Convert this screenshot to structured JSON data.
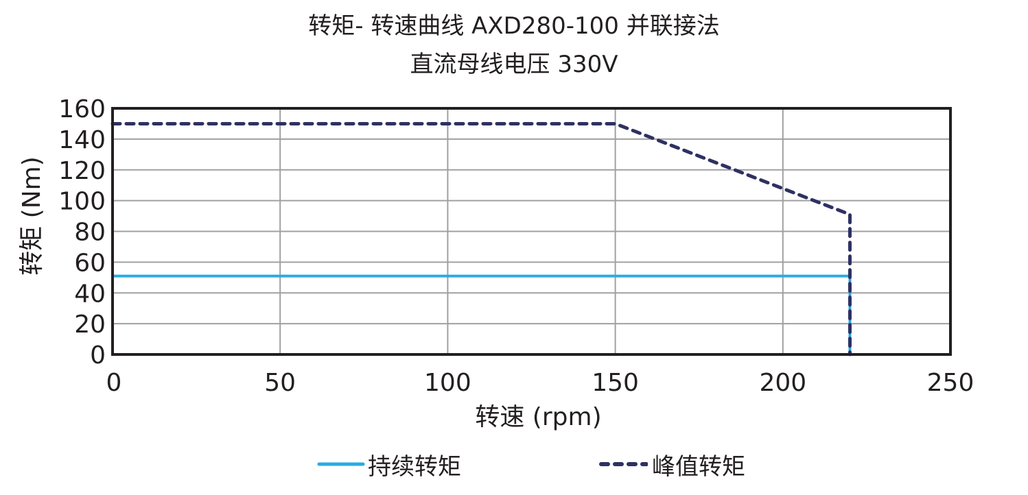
{
  "chart_data": {
    "type": "line",
    "title": "转矩- 转速曲线 AXD280-100 并联接法",
    "subtitle": "直流母线电压 330V",
    "xlabel": "转速 (rpm)",
    "ylabel": "转矩 (Nm)",
    "xlim": [
      0,
      250
    ],
    "ylim": [
      0,
      160
    ],
    "xticks": [
      0,
      50,
      100,
      150,
      200,
      250
    ],
    "yticks": [
      0,
      20,
      40,
      60,
      80,
      100,
      120,
      140,
      160
    ],
    "grid": true,
    "legend_position": "bottom",
    "series": [
      {
        "name": "持续转矩",
        "style": "solid",
        "color": "#29abe2",
        "points": [
          [
            0,
            51
          ],
          [
            220,
            51
          ],
          [
            220,
            0
          ]
        ]
      },
      {
        "name": "峰值转矩",
        "style": "dashed",
        "color": "#2e3162",
        "points": [
          [
            0,
            150
          ],
          [
            150,
            150
          ],
          [
            220,
            91
          ],
          [
            220,
            0
          ]
        ]
      }
    ]
  },
  "legend": {
    "continuous_label": "持续转矩",
    "peak_label": "峰值转矩"
  }
}
